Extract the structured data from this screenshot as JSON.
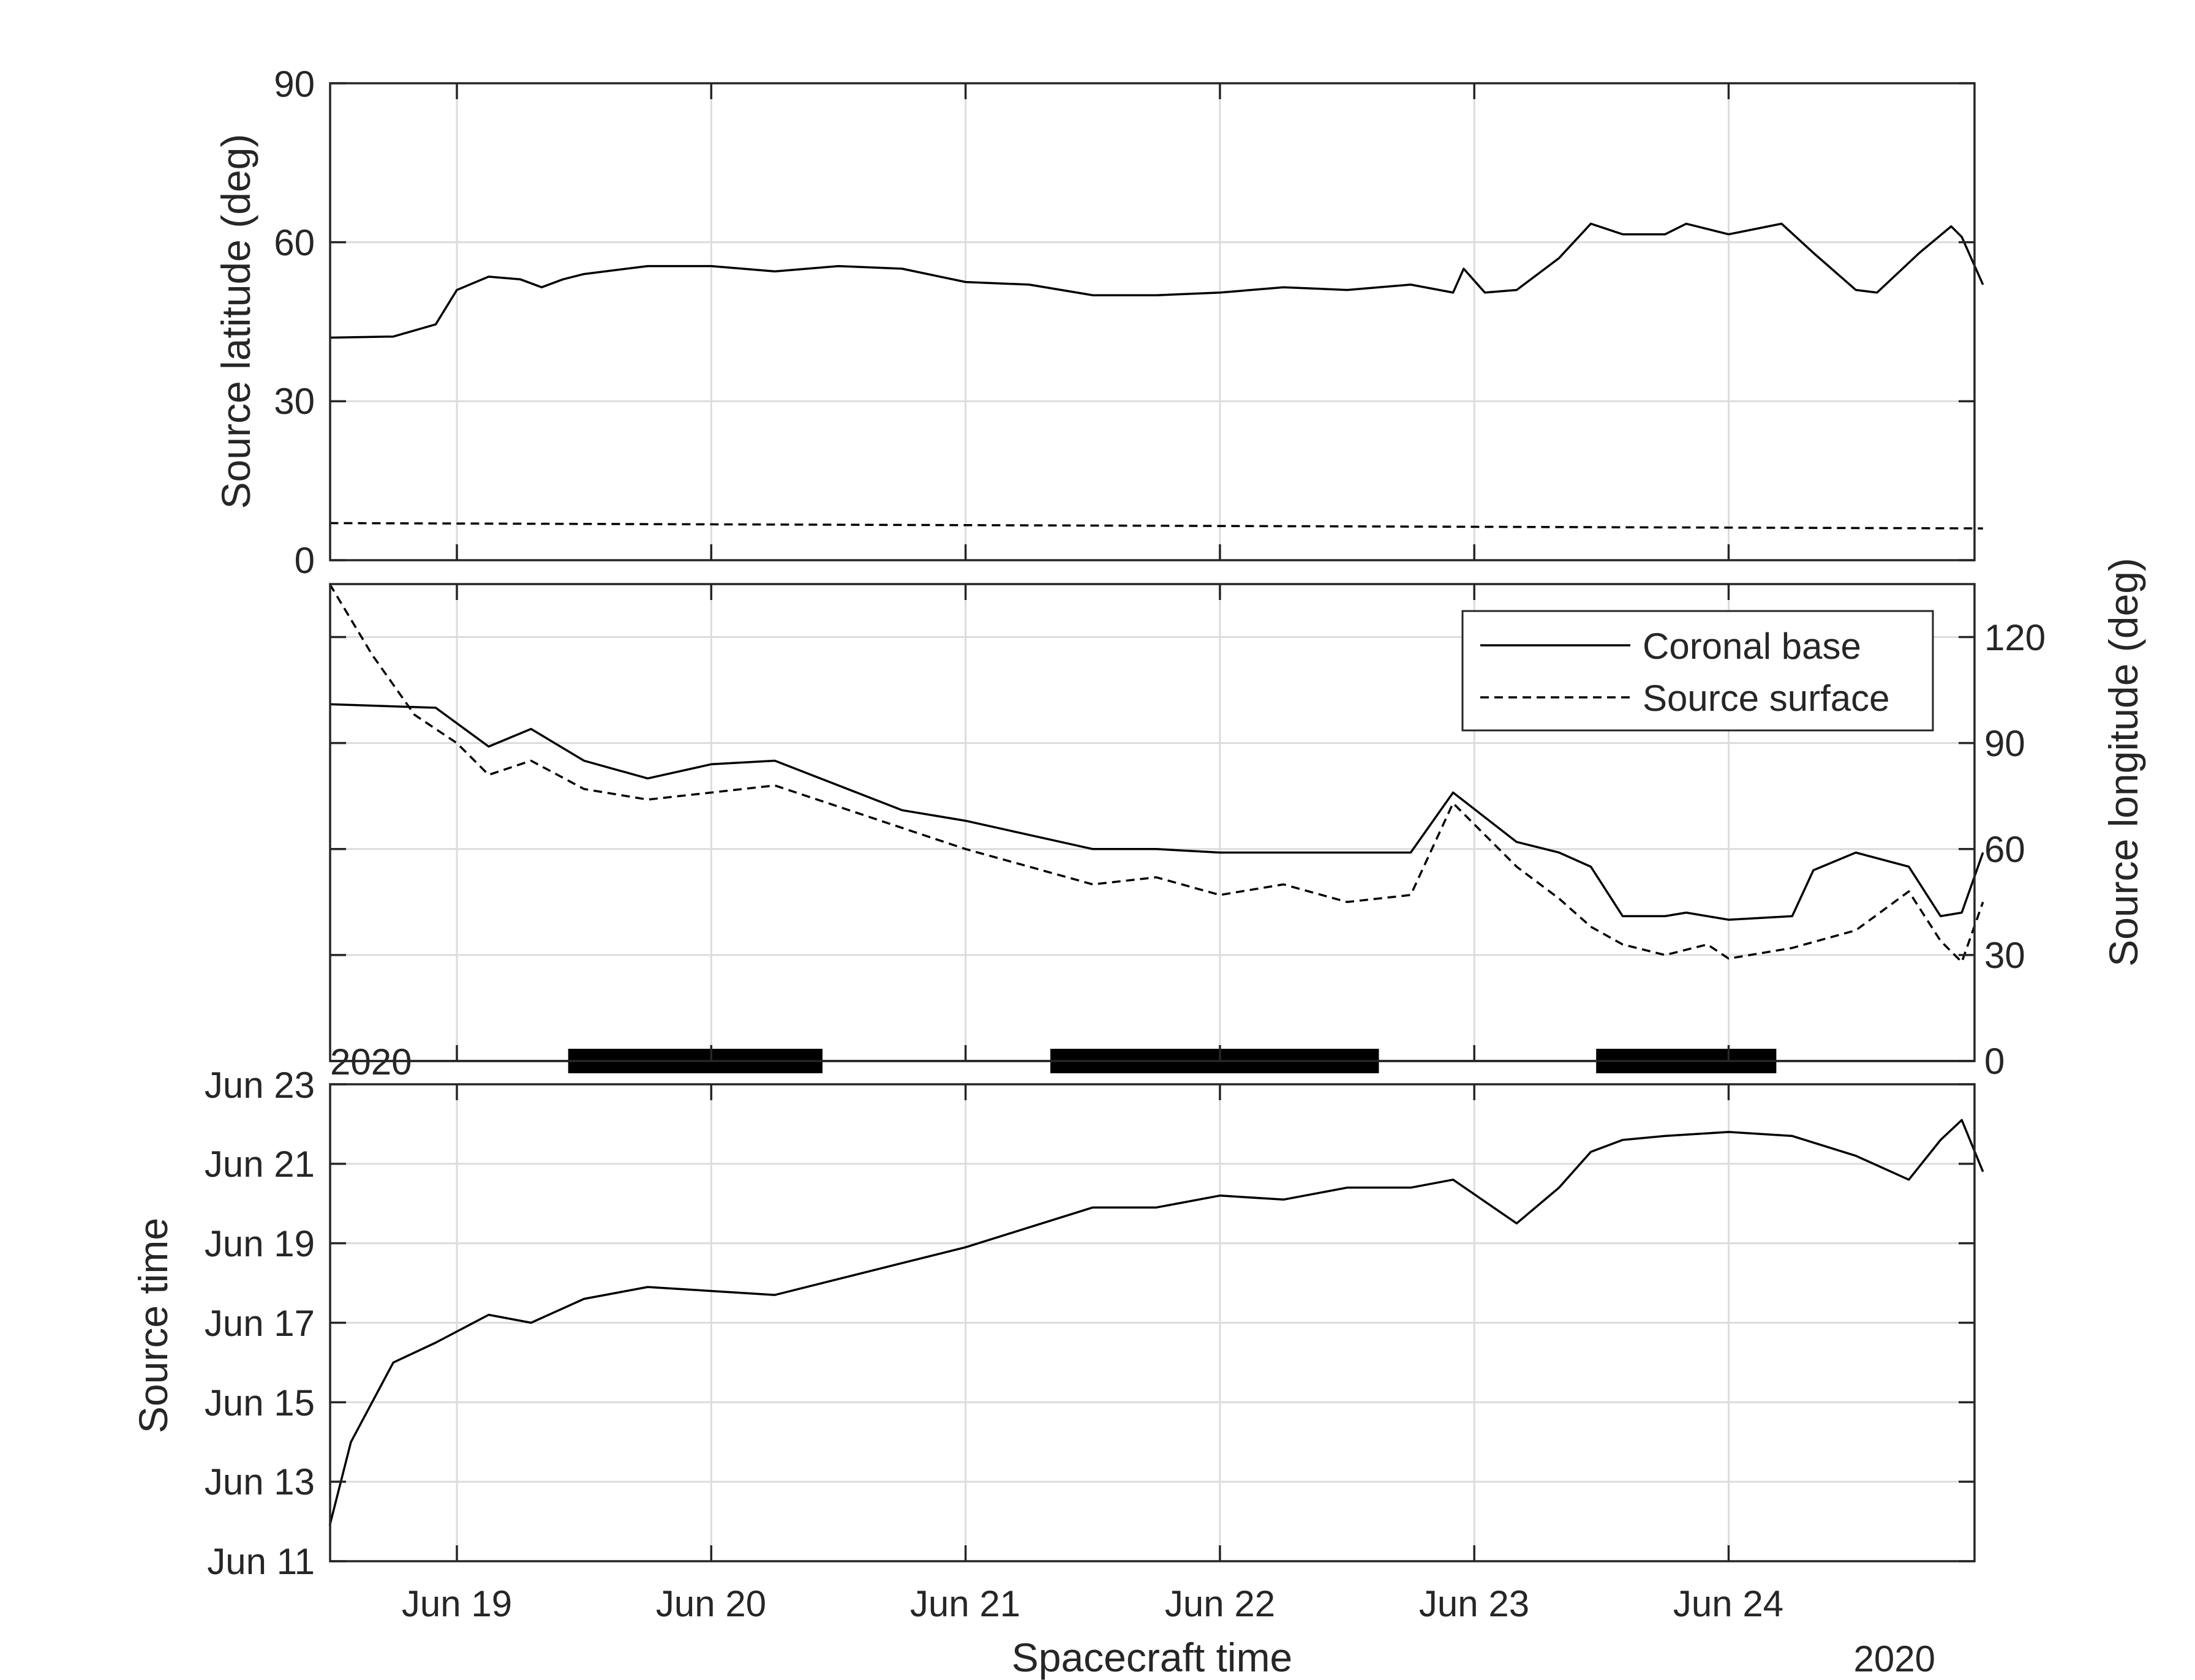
{
  "chart_data": [
    {
      "panel": "top",
      "type": "line",
      "ylabel": "Source latitude (deg)",
      "xlabel": "",
      "ylim": [
        0,
        90
      ],
      "yticks": [
        0,
        30,
        60,
        90
      ],
      "x_tick_labels": [
        "Jun 19",
        "Jun 20",
        "Jun 21",
        "Jun 22",
        "Jun 23",
        "Jun 24"
      ],
      "grid": true,
      "series": [
        {
          "style": "solid",
          "x": [
            "Jun 18 12:00",
            "Jun 18 18:00",
            "Jun 18 22:00",
            "Jun 19 00:00",
            "Jun 19 03:00",
            "Jun 19 06:00",
            "Jun 19 08:00",
            "Jun 19 10:00",
            "Jun 19 12:00",
            "Jun 19 18:00",
            "Jun 20 00:00",
            "Jun 20 06:00",
            "Jun 20 12:00",
            "Jun 20 18:00",
            "Jun 21 00:00",
            "Jun 21 06:00",
            "Jun 21 12:00",
            "Jun 21 18:00",
            "Jun 22 00:00",
            "Jun 22 06:00",
            "Jun 22 12:00",
            "Jun 22 18:00",
            "Jun 22 22:00",
            "Jun 22 23:00",
            "Jun 23 01:00",
            "Jun 23 04:00",
            "Jun 23 08:00",
            "Jun 23 11:00",
            "Jun 23 14:00",
            "Jun 23 18:00",
            "Jun 23 20:00",
            "Jun 24 00:00",
            "Jun 24 05:00",
            "Jun 24 08:00",
            "Jun 24 12:00",
            "Jun 24 14:00",
            "Jun 24 18:00",
            "Jun 24 21:00",
            "Jun 24 22:00",
            "Jun 25 00:00"
          ],
          "values": [
            42.0,
            42.2,
            44.5,
            51.0,
            53.5,
            53.0,
            51.5,
            53.0,
            54.0,
            55.5,
            55.5,
            54.5,
            55.5,
            55.0,
            52.5,
            52.0,
            50.0,
            50.0,
            50.5,
            51.5,
            51.0,
            52.0,
            50.5,
            55.0,
            50.5,
            51.0,
            57.0,
            63.5,
            61.5,
            61.5,
            63.5,
            61.5,
            63.5,
            58.0,
            51.0,
            50.5,
            58.0,
            63.0,
            61.0,
            52.0
          ]
        },
        {
          "style": "dashed",
          "x": [
            "Jun 18 12:00",
            "Jun 25 00:00"
          ],
          "values": [
            7.0,
            6.0
          ]
        }
      ]
    },
    {
      "panel": "middle",
      "type": "line",
      "ylabel": "Source longitude (deg)",
      "xlabel": "",
      "ylim": [
        0,
        135
      ],
      "yticks": [
        0,
        30,
        60,
        90,
        120
      ],
      "x_tick_labels": [
        "Jun 19",
        "Jun 20",
        "Jun 21",
        "Jun 22",
        "Jun 23",
        "Jun 24"
      ],
      "corner_label": "2020",
      "grid": true,
      "legend": {
        "placement": "top-right",
        "entries": [
          "Coronal base",
          "Source surface"
        ]
      },
      "series": [
        {
          "name": "Coronal base",
          "style": "solid",
          "x": [
            "Jun 18 12:00",
            "Jun 18 22:00",
            "Jun 19 03:00",
            "Jun 19 07:00",
            "Jun 19 12:00",
            "Jun 19 18:00",
            "Jun 20 00:00",
            "Jun 20 06:00",
            "Jun 20 12:00",
            "Jun 20 18:00",
            "Jun 21 00:00",
            "Jun 21 06:00",
            "Jun 21 12:00",
            "Jun 21 18:00",
            "Jun 22 00:00",
            "Jun 22 06:00",
            "Jun 22 12:00",
            "Jun 22 18:00",
            "Jun 22 22:00",
            "Jun 23 04:00",
            "Jun 23 08:00",
            "Jun 23 11:00",
            "Jun 23 14:00",
            "Jun 23 18:00",
            "Jun 23 20:00",
            "Jun 24 00:00",
            "Jun 24 06:00",
            "Jun 24 08:00",
            "Jun 24 12:00",
            "Jun 24 17:00",
            "Jun 24 20:00",
            "Jun 24 22:00",
            "Jun 25 00:00"
          ],
          "values": [
            101,
            100,
            89,
            94,
            85,
            80,
            84,
            85,
            78,
            71,
            68,
            64,
            60,
            60,
            59,
            59,
            59,
            59,
            76,
            62,
            59,
            55,
            41,
            41,
            42,
            40,
            41,
            54,
            59,
            55,
            41,
            42,
            59
          ]
        },
        {
          "name": "Source surface",
          "style": "dashed",
          "x": [
            "Jun 18 12:00",
            "Jun 18 16:00",
            "Jun 18 20:00",
            "Jun 19 00:00",
            "Jun 19 03:00",
            "Jun 19 07:00",
            "Jun 19 12:00",
            "Jun 19 18:00",
            "Jun 20 00:00",
            "Jun 20 06:00",
            "Jun 20 12:00",
            "Jun 20 18:00",
            "Jun 21 00:00",
            "Jun 21 06:00",
            "Jun 21 12:00",
            "Jun 21 18:00",
            "Jun 22 00:00",
            "Jun 22 06:00",
            "Jun 22 12:00",
            "Jun 22 18:00",
            "Jun 22 22:00",
            "Jun 23 04:00",
            "Jun 23 08:00",
            "Jun 23 11:00",
            "Jun 23 14:00",
            "Jun 23 18:00",
            "Jun 23 22:00",
            "Jun 24 00:00",
            "Jun 24 06:00",
            "Jun 24 12:00",
            "Jun 24 17:00",
            "Jun 24 20:00",
            "Jun 24 22:00",
            "Jun 25 00:00"
          ],
          "values": [
            135,
            115,
            98,
            90,
            81,
            85,
            77,
            74,
            76,
            78,
            72,
            66,
            60,
            55,
            50,
            52,
            47,
            50,
            45,
            47,
            73,
            55,
            46,
            38,
            33,
            30,
            33,
            29,
            32,
            37,
            48,
            34,
            28,
            45
          ]
        }
      ]
    },
    {
      "panel": "bottom",
      "type": "line",
      "ylabel": "Source time",
      "xlabel": "Spacecraft time",
      "x_corner_label": "2020",
      "ylim": [
        "Jun 11",
        "Jun 23"
      ],
      "yticks": [
        "Jun 11",
        "Jun 13",
        "Jun 15",
        "Jun 17",
        "Jun 19",
        "Jun 21",
        "Jun 23"
      ],
      "x_tick_labels": [
        "Jun 19",
        "Jun 20",
        "Jun 21",
        "Jun 22",
        "Jun 23",
        "Jun 24"
      ],
      "grid": true,
      "series": [
        {
          "style": "solid",
          "x": [
            "Jun 18 12:00",
            "Jun 18 14:00",
            "Jun 18 18:00",
            "Jun 18 22:00",
            "Jun 19 03:00",
            "Jun 19 07:00",
            "Jun 19 12:00",
            "Jun 19 18:00",
            "Jun 20 00:00",
            "Jun 20 06:00",
            "Jun 20 12:00",
            "Jun 20 18:00",
            "Jun 21 00:00",
            "Jun 21 06:00",
            "Jun 21 12:00",
            "Jun 21 18:00",
            "Jun 22 00:00",
            "Jun 22 06:00",
            "Jun 22 12:00",
            "Jun 22 18:00",
            "Jun 22 22:00",
            "Jun 23 04:00",
            "Jun 23 08:00",
            "Jun 23 11:00",
            "Jun 23 14:00",
            "Jun 23 18:00",
            "Jun 24 00:00",
            "Jun 24 06:00",
            "Jun 24 12:00",
            "Jun 24 17:00",
            "Jun 24 20:00",
            "Jun 24 22:00",
            "Jun 25 00:00"
          ],
          "values": [
            11.9,
            14.0,
            16.0,
            16.5,
            17.2,
            17.0,
            17.6,
            17.9,
            17.8,
            17.7,
            18.1,
            18.5,
            18.9,
            19.4,
            19.9,
            19.9,
            20.2,
            20.1,
            20.4,
            20.4,
            20.6,
            19.5,
            20.4,
            21.3,
            21.6,
            21.7,
            21.8,
            21.7,
            21.2,
            20.6,
            21.6,
            22.1,
            20.8
          ]
        }
      ]
    }
  ]
}
